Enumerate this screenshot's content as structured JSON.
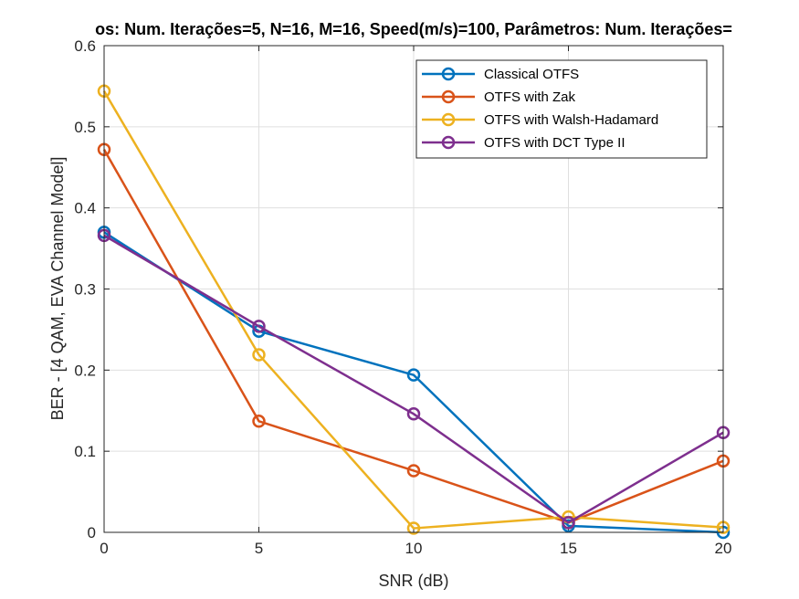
{
  "chart_data": {
    "type": "line",
    "title": "os: Num. Iterações=5, N=16, M=16, Speed(m/s)=100, Parâmetros: Num. Iterações=",
    "xlabel": "SNR (dB)",
    "ylabel": "BER - [4 QAM, EVA Channel Model]",
    "x": [
      0,
      5,
      10,
      15,
      20
    ],
    "xlim": [
      0,
      20
    ],
    "ylim": [
      0,
      0.6
    ],
    "xticks": [
      0,
      5,
      10,
      15,
      20
    ],
    "yticks": [
      0,
      0.1,
      0.2,
      0.3,
      0.4,
      0.5,
      0.6
    ],
    "xtick_labels": [
      "0",
      "5",
      "10",
      "15",
      "20"
    ],
    "ytick_labels": [
      "0",
      "0.1",
      "0.2",
      "0.3",
      "0.4",
      "0.5",
      "0.6"
    ],
    "grid": true,
    "legend_position": "top-right",
    "series": [
      {
        "name": "Classical OTFS",
        "color": "#0072BD",
        "values": [
          0.37,
          0.248,
          0.194,
          0.008,
          0.0
        ]
      },
      {
        "name": "OTFS with Zak",
        "color": "#D95319",
        "values": [
          0.472,
          0.137,
          0.076,
          0.012,
          0.088
        ]
      },
      {
        "name": "OTFS with Walsh-Hadamard",
        "color": "#EDB120",
        "values": [
          0.544,
          0.219,
          0.005,
          0.019,
          0.006
        ]
      },
      {
        "name": "OTFS with DCT Type II",
        "color": "#7E2F8E",
        "values": [
          0.366,
          0.254,
          0.146,
          0.012,
          0.123
        ]
      }
    ]
  }
}
